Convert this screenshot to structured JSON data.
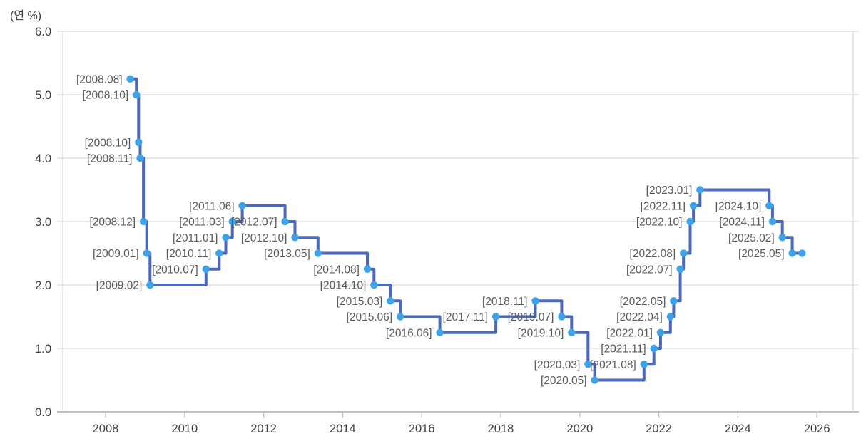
{
  "chart_data": {
    "type": "line",
    "step": "after",
    "title": "",
    "ylabel": "(연 %)",
    "xlabel": "",
    "legend": null,
    "grid": "horizontal",
    "xlim": [
      2006.917,
      2026.917
    ],
    "ylim": [
      0.0,
      6.0
    ],
    "colors": {
      "line": "#4b68b9",
      "marker": "#3da3e8",
      "grid": "#d9d9d9",
      "axis": "#bfbfbf",
      "point_label": "#595959",
      "tick_label": "#3f3f3f"
    },
    "y_ticks": [
      {
        "value": 0,
        "label": "0.0"
      },
      {
        "value": 1,
        "label": "1.0"
      },
      {
        "value": 2,
        "label": "2.0"
      },
      {
        "value": 3,
        "label": "3.0"
      },
      {
        "value": 4,
        "label": "4.0"
      },
      {
        "value": 5,
        "label": "5.0"
      },
      {
        "value": 6,
        "label": "6.0"
      }
    ],
    "x_ticks": [
      {
        "value": 2008,
        "label": "2008"
      },
      {
        "value": 2010,
        "label": "2010"
      },
      {
        "value": 2012,
        "label": "2012"
      },
      {
        "value": 2014,
        "label": "2014"
      },
      {
        "value": 2016,
        "label": "2016"
      },
      {
        "value": 2018,
        "label": "2018"
      },
      {
        "value": 2020,
        "label": "2020"
      },
      {
        "value": 2022,
        "label": "2022"
      },
      {
        "value": 2024,
        "label": "2024"
      },
      {
        "value": 2026,
        "label": "2026"
      }
    ],
    "points": [
      {
        "label": "[2008.08]",
        "t": 2008.625,
        "rate": 5.25
      },
      {
        "label": "[2008.10]",
        "t": 2008.78,
        "rate": 5.0
      },
      {
        "label": "[2008.10]",
        "t": 2008.835,
        "rate": 4.25
      },
      {
        "label": "[2008.11]",
        "t": 2008.875,
        "rate": 4.0
      },
      {
        "label": "[2008.12]",
        "t": 2008.958,
        "rate": 3.0
      },
      {
        "label": "[2009.01]",
        "t": 2009.042,
        "rate": 2.5
      },
      {
        "label": "[2009.02]",
        "t": 2009.125,
        "rate": 2.0
      },
      {
        "label": "[2010.07]",
        "t": 2010.542,
        "rate": 2.25
      },
      {
        "label": "[2010.11]",
        "t": 2010.875,
        "rate": 2.5
      },
      {
        "label": "[2011.01]",
        "t": 2011.042,
        "rate": 2.75
      },
      {
        "label": "[2011.03]",
        "t": 2011.208,
        "rate": 3.0
      },
      {
        "label": "[2011.06]",
        "t": 2011.458,
        "rate": 3.25
      },
      {
        "label": "[2012.07]",
        "t": 2012.542,
        "rate": 3.0
      },
      {
        "label": "[2012.10]",
        "t": 2012.792,
        "rate": 2.75
      },
      {
        "label": "[2013.05]",
        "t": 2013.375,
        "rate": 2.5
      },
      {
        "label": "[2014.08]",
        "t": 2014.625,
        "rate": 2.25
      },
      {
        "label": "[2014.10]",
        "t": 2014.792,
        "rate": 2.0
      },
      {
        "label": "[2015.03]",
        "t": 2015.208,
        "rate": 1.75
      },
      {
        "label": "[2015.06]",
        "t": 2015.458,
        "rate": 1.5
      },
      {
        "label": "[2016.06]",
        "t": 2016.458,
        "rate": 1.25
      },
      {
        "label": "[2017.11]",
        "t": 2017.875,
        "rate": 1.5
      },
      {
        "label": "[2018.11]",
        "t": 2018.875,
        "rate": 1.75
      },
      {
        "label": "[2019.07]",
        "t": 2019.542,
        "rate": 1.5
      },
      {
        "label": "[2019.10]",
        "t": 2019.792,
        "rate": 1.25
      },
      {
        "label": "[2020.03]",
        "t": 2020.208,
        "rate": 0.75
      },
      {
        "label": "[2020.05]",
        "t": 2020.375,
        "rate": 0.5
      },
      {
        "label": "[2021.08]",
        "t": 2021.625,
        "rate": 0.75
      },
      {
        "label": "[2021.11]",
        "t": 2021.875,
        "rate": 1.0
      },
      {
        "label": "[2022.01]",
        "t": 2022.042,
        "rate": 1.25
      },
      {
        "label": "[2022.04]",
        "t": 2022.292,
        "rate": 1.5
      },
      {
        "label": "[2022.05]",
        "t": 2022.375,
        "rate": 1.75
      },
      {
        "label": "[2022.07]",
        "t": 2022.542,
        "rate": 2.25
      },
      {
        "label": "[2022.08]",
        "t": 2022.625,
        "rate": 2.5
      },
      {
        "label": "[2022.10]",
        "t": 2022.792,
        "rate": 3.0
      },
      {
        "label": "[2022.11]",
        "t": 2022.875,
        "rate": 3.25
      },
      {
        "label": "[2023.01]",
        "t": 2023.042,
        "rate": 3.5
      },
      {
        "label": "[2024.10]",
        "t": 2024.792,
        "rate": 3.25
      },
      {
        "label": "[2024.11]",
        "t": 2024.875,
        "rate": 3.0
      },
      {
        "label": "[2025.02]",
        "t": 2025.125,
        "rate": 2.75
      },
      {
        "label": "[2025.05]",
        "t": 2025.375,
        "rate": 2.5
      },
      {
        "label": null,
        "t": 2025.625,
        "rate": 2.5
      }
    ]
  }
}
